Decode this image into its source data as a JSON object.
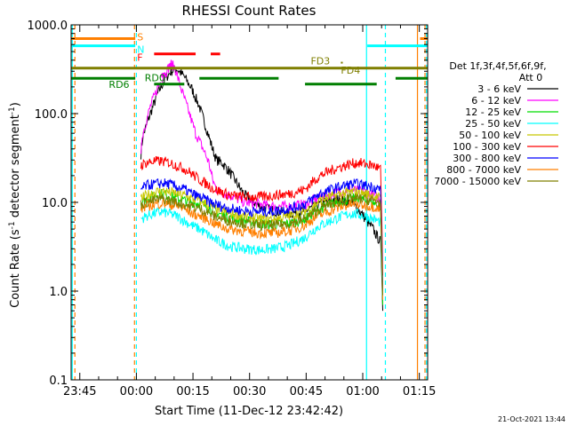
{
  "colors": {
    "background": "#ffffff",
    "axis": "#000000",
    "series": [
      "#000000",
      "#ff00ff",
      "#00dd00",
      "#00ffff",
      "#c8c800",
      "#ff0000",
      "#0000ff",
      "#ff7f00",
      "#7f7f00"
    ],
    "flag_S": "#ff7f00",
    "flag_N": "#00ffff",
    "flag_F": "#ff0000",
    "flag_FD": "#7f7f00",
    "flag_RD": "#007f00",
    "orange_marker": "#ff7f00",
    "cyan_marker": "#00ffff"
  },
  "chart_data": {
    "type": "line",
    "title": "RHESSI Count Rates",
    "xlabel": "Start Time (11-Dec-12 23:42:42)",
    "ylabel": "Count Rate (s⁻¹ detector segment⁻¹)",
    "ylabel_parts": [
      "Count Rate (s",
      "-1",
      " detector segment",
      "-1",
      ")"
    ],
    "x_unit": "minutes since start time",
    "xlim": [
      0,
      94.5
    ],
    "ylim": [
      0.1,
      1000
    ],
    "y_scale": "log",
    "grid": false,
    "x_ticks": [
      {
        "x": 2.3,
        "label": "23:45"
      },
      {
        "x": 17.3,
        "label": "00:00"
      },
      {
        "x": 32.3,
        "label": "00:15"
      },
      {
        "x": 47.3,
        "label": "00:30"
      },
      {
        "x": 62.3,
        "label": "00:45"
      },
      {
        "x": 77.3,
        "label": "01:00"
      },
      {
        "x": 92.3,
        "label": "01:15"
      }
    ],
    "y_ticks": [
      {
        "y": 0.1,
        "label": "0.1"
      },
      {
        "y": 1,
        "label": "1.0"
      },
      {
        "y": 10,
        "label": "10.0"
      },
      {
        "y": 100,
        "label": "100.0"
      },
      {
        "y": 1000,
        "label": "1000.0"
      }
    ],
    "legend": {
      "position": "right",
      "header": [
        "Det 1f,3f,4f,5f,6f,9f,",
        "Att 0"
      ],
      "entries": [
        "3 - 6 keV",
        "6 - 12 keV",
        "12 - 25 keV",
        "25 - 50 keV",
        "50 - 100 keV",
        "100 - 300 keV",
        "300 - 800 keV",
        "800 - 7000 keV",
        "7000 - 15000 keV"
      ]
    },
    "series": [
      {
        "name": "3 - 6 keV",
        "color": "#000000",
        "x": [
          18.5,
          19,
          21,
          23,
          25,
          26.5,
          28,
          30,
          32,
          34,
          36,
          37.5,
          38.5,
          40,
          42,
          46,
          50,
          54,
          58,
          62,
          66,
          70,
          74,
          76,
          78,
          80,
          81,
          82,
          82.4,
          82.6
        ],
        "y": [
          35,
          55,
          100,
          170,
          250,
          300,
          320,
          260,
          190,
          120,
          65,
          40,
          30,
          28,
          22,
          12,
          9,
          8,
          7.5,
          8,
          9.5,
          11,
          10,
          8.5,
          6.5,
          5,
          4.2,
          3.6,
          1.2,
          0.6
        ]
      },
      {
        "name": "6 - 12 keV",
        "color": "#ff00ff",
        "x": [
          18.5,
          19,
          21,
          23,
          25,
          26.5,
          27.5,
          29,
          31,
          33,
          35,
          36.5,
          37.5,
          38.5,
          40,
          42,
          46,
          50,
          54,
          58,
          62,
          66,
          70,
          74,
          76,
          78,
          80,
          82,
          82.4,
          82.6
        ],
        "y": [
          40,
          60,
          120,
          200,
          290,
          360,
          330,
          200,
          110,
          60,
          40,
          28,
          18,
          14,
          13,
          12,
          10,
          9.5,
          9,
          9,
          9.5,
          11.5,
          13,
          14,
          13.5,
          13,
          12,
          11,
          2.5,
          0.9
        ]
      },
      {
        "name": "12 - 25 keV",
        "color": "#00dd00",
        "x": [
          18.5,
          20,
          22,
          24,
          26,
          28,
          30,
          32,
          34,
          36,
          38,
          40,
          42,
          46,
          50,
          54,
          58,
          62,
          64,
          66,
          70,
          74,
          76,
          78,
          80,
          82,
          82.4,
          82.6
        ],
        "y": [
          10,
          11,
          12,
          12.5,
          12,
          11,
          10.5,
          10,
          9.8,
          9,
          8,
          7.2,
          6.8,
          6.2,
          5.8,
          5.6,
          5.8,
          6.5,
          7.5,
          8.5,
          10,
          11,
          11,
          10.5,
          10,
          9,
          2,
          0.7
        ]
      },
      {
        "name": "25 - 50 keV",
        "color": "#00ffff",
        "x": [
          18.5,
          20,
          22,
          24,
          26,
          28,
          30,
          32,
          34,
          36,
          38,
          40,
          42,
          46,
          50,
          54,
          58,
          62,
          64,
          66,
          70,
          74,
          76,
          78,
          80,
          82,
          82.4,
          82.6
        ],
        "y": [
          6.5,
          7,
          7.5,
          7.8,
          7.5,
          7,
          6.2,
          5.5,
          5,
          4.4,
          3.8,
          3.5,
          3.2,
          3,
          2.9,
          3,
          3.3,
          4,
          4.8,
          5.5,
          6.5,
          7.5,
          7.3,
          7,
          6.5,
          6,
          1.5,
          0.8
        ]
      },
      {
        "name": "50 - 100 keV",
        "color": "#c8c800",
        "x": [
          18.5,
          20,
          22,
          24,
          26,
          28,
          30,
          32,
          34,
          36,
          38,
          40,
          42,
          46,
          50,
          54,
          58,
          62,
          64,
          66,
          70,
          74,
          76,
          78,
          80,
          82,
          82.4,
          82.6
        ],
        "y": [
          11,
          12,
          13,
          13.5,
          13,
          12.5,
          12,
          11,
          10.5,
          9.5,
          8.5,
          8,
          7.5,
          7,
          6.5,
          6.5,
          7,
          8,
          9,
          10.5,
          12,
          13,
          13,
          12.5,
          12,
          11,
          2.5,
          1
        ]
      },
      {
        "name": "100 - 300 keV",
        "color": "#ff0000",
        "x": [
          18.5,
          20,
          22,
          24,
          26,
          28,
          30,
          32,
          34,
          36,
          38,
          40,
          42,
          46,
          50,
          54,
          58,
          62,
          64,
          66,
          70,
          74,
          76,
          78,
          80,
          82,
          82.4,
          82.6
        ],
        "y": [
          26,
          28,
          29,
          29,
          28,
          26,
          24,
          21,
          18,
          16,
          14,
          13,
          12,
          11.5,
          11.5,
          12,
          12.5,
          14,
          17,
          20,
          24,
          27,
          28,
          27,
          26,
          24,
          5,
          1.5
        ]
      },
      {
        "name": "300 - 800 keV",
        "color": "#0000ff",
        "x": [
          18.5,
          20,
          22,
          24,
          26,
          28,
          30,
          32,
          34,
          36,
          38,
          40,
          42,
          46,
          50,
          54,
          58,
          62,
          64,
          66,
          70,
          74,
          76,
          78,
          80,
          82,
          82.4,
          82.6
        ],
        "y": [
          14,
          15.5,
          16,
          16.5,
          16,
          15,
          14,
          12.5,
          11.5,
          10.5,
          9.5,
          9,
          8.5,
          8,
          7.8,
          8,
          8.5,
          9.5,
          11,
          12.5,
          14.5,
          16,
          16,
          15.5,
          15,
          14,
          3,
          1
        ]
      },
      {
        "name": "800 - 7000 keV",
        "color": "#ff7f00",
        "x": [
          18.5,
          20,
          22,
          24,
          26,
          28,
          30,
          32,
          34,
          36,
          38,
          40,
          42,
          46,
          50,
          54,
          58,
          62,
          64,
          66,
          70,
          74,
          76,
          78,
          80,
          82,
          82.4,
          82.6
        ],
        "y": [
          8.5,
          9,
          9.5,
          9.8,
          9.5,
          9,
          8.5,
          7.5,
          7,
          6.5,
          5.8,
          5.3,
          5,
          4.7,
          4.5,
          4.5,
          4.8,
          5.5,
          6.5,
          7.2,
          8.5,
          9.5,
          9.5,
          9.2,
          9,
          8.5,
          2,
          0.8
        ]
      },
      {
        "name": "7000 - 15000 keV",
        "color": "#7f7f00",
        "x": [
          18.5,
          20,
          22,
          24,
          26,
          28,
          30,
          32,
          34,
          36,
          38,
          40,
          42,
          46,
          50,
          54,
          58,
          62,
          64,
          66,
          70,
          74,
          76,
          78,
          80,
          82,
          82.4,
          82.6
        ],
        "y": [
          9.5,
          10,
          10.5,
          11,
          10.5,
          10,
          9.5,
          9,
          8.5,
          7.8,
          7,
          6.5,
          6.2,
          5.8,
          5.5,
          5.5,
          5.8,
          6.5,
          7.5,
          8.5,
          10,
          11,
          11,
          10.8,
          10.5,
          10,
          2.2,
          0.9
        ]
      }
    ],
    "peak_markers": [
      {
        "x": 24.5,
        "y": 270
      },
      {
        "x": 26.5,
        "y": 350
      }
    ],
    "flag_bars": [
      {
        "label": "S",
        "color": "#ff7f00",
        "y": 700,
        "segments": [
          [
            0,
            17
          ],
          [
            92.5,
            94.5
          ]
        ]
      },
      {
        "label": "N",
        "color": "#00ffff",
        "y": 580,
        "segments": [
          [
            0,
            17
          ],
          [
            78.5,
            94.5
          ]
        ]
      },
      {
        "label": "F",
        "color": "#ff0000",
        "y": 470,
        "segments": [
          [
            22,
            33
          ],
          [
            37,
            39.5
          ]
        ]
      },
      {
        "label": "FD3",
        "color": "#7f7f00",
        "y": 375,
        "segments": [
          [
            71.5,
            72
          ]
        ]
      },
      {
        "label": "FD4",
        "color": "#7f7f00",
        "y": 325,
        "segments": [
          [
            0,
            94.5
          ]
        ]
      },
      {
        "label": "RD0",
        "color": "#007f00",
        "y": 250,
        "segments": [
          [
            0,
            17
          ],
          [
            34,
            55
          ],
          [
            86,
            94.5
          ]
        ]
      },
      {
        "label": "RD6",
        "color": "#007f00",
        "y": 215,
        "segments": [
          [
            22,
            30
          ],
          [
            62,
            81
          ]
        ]
      }
    ],
    "flag_label_positions": [
      {
        "label": "S",
        "x": 17.5,
        "y": 730
      },
      {
        "label": "N",
        "x": 17.5,
        "y": 530
      },
      {
        "label": "F",
        "x": 17.5,
        "y": 430
      },
      {
        "label": "FD3",
        "x": 63.5,
        "y": 395
      },
      {
        "label": "FD4",
        "x": 71.5,
        "y": 310
      },
      {
        "label": "RD0",
        "x": 19.5,
        "y": 255
      },
      {
        "label": "RD6",
        "x": 10,
        "y": 215
      }
    ],
    "vertical_markers": [
      {
        "x": 0.3,
        "color": "#00ffff",
        "style": "solid"
      },
      {
        "x": 1.0,
        "color": "#ff7f00",
        "style": "dashed"
      },
      {
        "x": 16.8,
        "color": "#ff7f00",
        "style": "dashed"
      },
      {
        "x": 17.3,
        "color": "#00ffff",
        "style": "dashed"
      },
      {
        "x": 78.3,
        "color": "#00ffff",
        "style": "solid"
      },
      {
        "x": 83.3,
        "color": "#00ffff",
        "style": "dashed"
      },
      {
        "x": 91.8,
        "color": "#ff7f00",
        "style": "solid"
      },
      {
        "x": 93.8,
        "color": "#ff7f00",
        "style": "dashed"
      },
      {
        "x": 94.2,
        "color": "#00ffff",
        "style": "dashed"
      }
    ]
  },
  "footer": {
    "timestamp": "21-Oct-2021 13:44"
  }
}
